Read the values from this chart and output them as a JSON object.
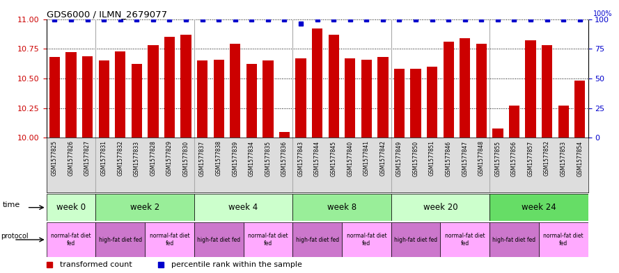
{
  "title": "GDS6000 / ILMN_2679077",
  "samples": [
    "GSM1577825",
    "GSM1577826",
    "GSM1577827",
    "GSM1577831",
    "GSM1577832",
    "GSM1577833",
    "GSM1577828",
    "GSM1577829",
    "GSM1577830",
    "GSM1577837",
    "GSM1577838",
    "GSM1577839",
    "GSM1577834",
    "GSM1577835",
    "GSM1577836",
    "GSM1577843",
    "GSM1577844",
    "GSM1577845",
    "GSM1577840",
    "GSM1577841",
    "GSM1577842",
    "GSM1577849",
    "GSM1577850",
    "GSM1577851",
    "GSM1577846",
    "GSM1577847",
    "GSM1577848",
    "GSM1577855",
    "GSM1577856",
    "GSM1577857",
    "GSM1577852",
    "GSM1577853",
    "GSM1577854"
  ],
  "bar_values": [
    10.68,
    10.72,
    10.69,
    10.65,
    10.73,
    10.62,
    10.78,
    10.85,
    10.87,
    10.65,
    10.66,
    10.79,
    10.62,
    10.65,
    10.05,
    10.67,
    10.92,
    10.87,
    10.67,
    10.66,
    10.68,
    10.58,
    10.58,
    10.6,
    10.81,
    10.84,
    10.79,
    10.08,
    10.27,
    10.82,
    10.78,
    10.27,
    10.48
  ],
  "percentile_values": [
    100,
    100,
    100,
    100,
    100,
    100,
    100,
    100,
    100,
    100,
    100,
    100,
    100,
    100,
    100,
    96,
    100,
    100,
    100,
    100,
    100,
    100,
    100,
    100,
    100,
    100,
    100,
    100,
    100,
    100,
    100,
    100,
    100
  ],
  "bar_color": "#cc0000",
  "percentile_color": "#0000cc",
  "ylim_left": [
    10.0,
    11.0
  ],
  "ylim_right": [
    0,
    100
  ],
  "yticks_left": [
    10.0,
    10.25,
    10.5,
    10.75,
    11.0
  ],
  "yticks_right": [
    0,
    25,
    50,
    75,
    100
  ],
  "time_groups": [
    {
      "label": "week 0",
      "start": 0,
      "end": 3,
      "color": "#ccffcc"
    },
    {
      "label": "week 2",
      "start": 3,
      "end": 9,
      "color": "#99ee99"
    },
    {
      "label": "week 4",
      "start": 9,
      "end": 15,
      "color": "#ccffcc"
    },
    {
      "label": "week 8",
      "start": 15,
      "end": 21,
      "color": "#99ee99"
    },
    {
      "label": "week 20",
      "start": 21,
      "end": 27,
      "color": "#ccffcc"
    },
    {
      "label": "week 24",
      "start": 27,
      "end": 33,
      "color": "#66dd66"
    }
  ],
  "protocol_groups": [
    {
      "label": "normal-fat diet\nfed",
      "start": 0,
      "end": 3,
      "color": "#ffaaff"
    },
    {
      "label": "high-fat diet fed",
      "start": 3,
      "end": 6,
      "color": "#cc77cc"
    },
    {
      "label": "normal-fat diet\nfed",
      "start": 6,
      "end": 9,
      "color": "#ffaaff"
    },
    {
      "label": "high-fat diet fed",
      "start": 9,
      "end": 12,
      "color": "#cc77cc"
    },
    {
      "label": "normal-fat diet\nfed",
      "start": 12,
      "end": 15,
      "color": "#ffaaff"
    },
    {
      "label": "high-fat diet fed",
      "start": 15,
      "end": 18,
      "color": "#cc77cc"
    },
    {
      "label": "normal-fat diet\nfed",
      "start": 18,
      "end": 21,
      "color": "#ffaaff"
    },
    {
      "label": "high-fat diet fed",
      "start": 21,
      "end": 24,
      "color": "#cc77cc"
    },
    {
      "label": "normal-fat diet\nfed",
      "start": 24,
      "end": 27,
      "color": "#ffaaff"
    },
    {
      "label": "high-fat diet fed",
      "start": 27,
      "end": 30,
      "color": "#cc77cc"
    },
    {
      "label": "normal-fat diet\nfed",
      "start": 30,
      "end": 33,
      "color": "#ffaaff"
    }
  ],
  "legend_red_label": "transformed count",
  "legend_blue_label": "percentile rank within the sample",
  "xtick_bg": "#dddddd",
  "figsize": [
    8.89,
    3.93
  ],
  "dpi": 100
}
